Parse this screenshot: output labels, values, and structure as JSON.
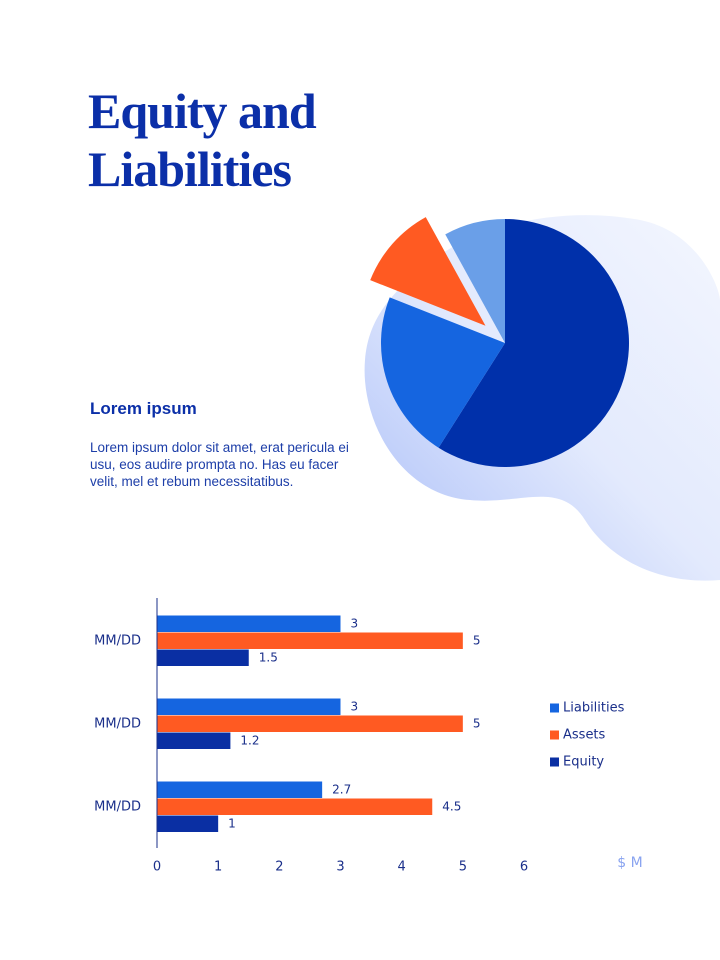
{
  "title": "Equity and Liabilities",
  "subtitle": "Lorem ipsum",
  "body": "Lorem ipsum dolor sit amet, erat pericula ei usu, eos audire prompta no. Has eu facer velit, mel et rebum necessitatibus.",
  "chart_data": [
    {
      "type": "pie",
      "values": [
        59,
        22,
        11,
        8
      ],
      "colors": [
        "#0030aa",
        "#1565e0",
        "#ff5a22",
        "#6a9fe8"
      ],
      "exploded": [
        false,
        false,
        true,
        false
      ]
    },
    {
      "type": "hbar",
      "categories": [
        "MM/DD",
        "MM/DD",
        "MM/DD"
      ],
      "series": [
        {
          "name": "Liabilities",
          "color": "#1565e0",
          "values": [
            3,
            3,
            2.7
          ]
        },
        {
          "name": "Assets",
          "color": "#ff5a22",
          "values": [
            5,
            5,
            4.5
          ]
        },
        {
          "name": "Equity",
          "color": "#0a2fa3",
          "values": [
            1.5,
            1.2,
            1
          ]
        }
      ],
      "xlim": [
        0,
        6
      ],
      "xticks": [
        0,
        1,
        2,
        3,
        4,
        5,
        6
      ],
      "xlabel": "$ M",
      "legend": "right",
      "grid": false
    }
  ]
}
